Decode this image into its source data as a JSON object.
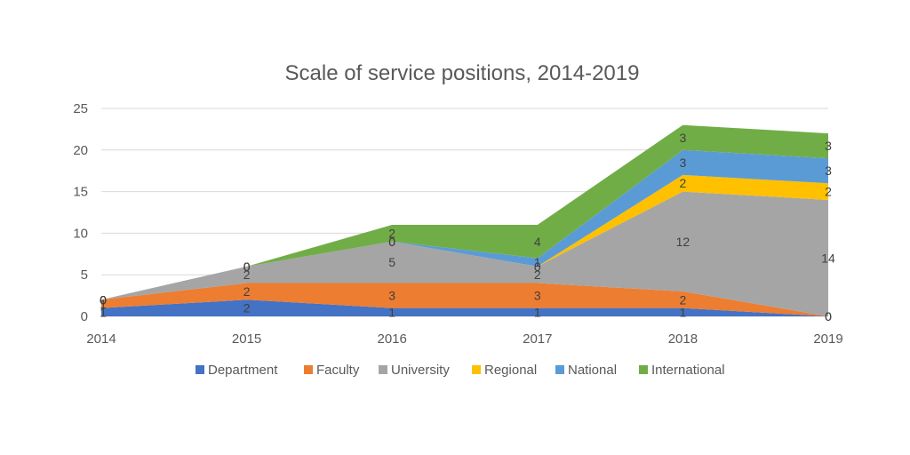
{
  "chart_data": {
    "type": "area",
    "stacked": true,
    "title": "Scale of service positions, 2014-2019",
    "xlabel": "",
    "ylabel": "",
    "categories": [
      "2014",
      "2015",
      "2016",
      "2017",
      "2018",
      "2019"
    ],
    "ylim": [
      0,
      25
    ],
    "yticks": [
      "0",
      "5",
      "10",
      "15",
      "20",
      "25"
    ],
    "grid": true,
    "legend": "bottom",
    "series": [
      {
        "name": "Department",
        "color": "#4472C4",
        "values": [
          1,
          2,
          1,
          1,
          1,
          0
        ]
      },
      {
        "name": "Faculty",
        "color": "#ED7D31",
        "values": [
          1,
          2,
          3,
          3,
          2,
          0
        ]
      },
      {
        "name": "University",
        "color": "#A5A5A5",
        "values": [
          0,
          2,
          5,
          2,
          12,
          14
        ]
      },
      {
        "name": "Regional",
        "color": "#FFC000",
        "values": [
          0,
          0,
          0,
          0,
          2,
          2
        ]
      },
      {
        "name": "National",
        "color": "#5B9BD5",
        "values": [
          0,
          0,
          0,
          1,
          3,
          3
        ]
      },
      {
        "name": "International",
        "color": "#70AD47",
        "values": [
          0,
          0,
          2,
          4,
          3,
          3
        ]
      }
    ]
  }
}
